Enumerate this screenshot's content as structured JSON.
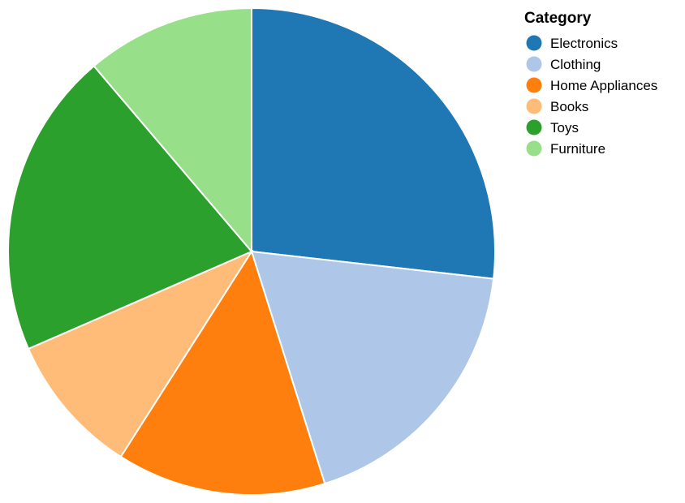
{
  "chart_data": {
    "type": "pie",
    "title": "",
    "legend_title": "Category",
    "legend_position": "top-right",
    "categories": [
      "Electronics",
      "Clothing",
      "Home Appliances",
      "Books",
      "Toys",
      "Furniture"
    ],
    "values": [
      27.0,
      18.5,
      14.0,
      9.5,
      20.5,
      11.3
    ],
    "colors": [
      "#1f77b4",
      "#aec7e8",
      "#ff7f0e",
      "#ffbb78",
      "#2ca02c",
      "#98df8a"
    ]
  }
}
